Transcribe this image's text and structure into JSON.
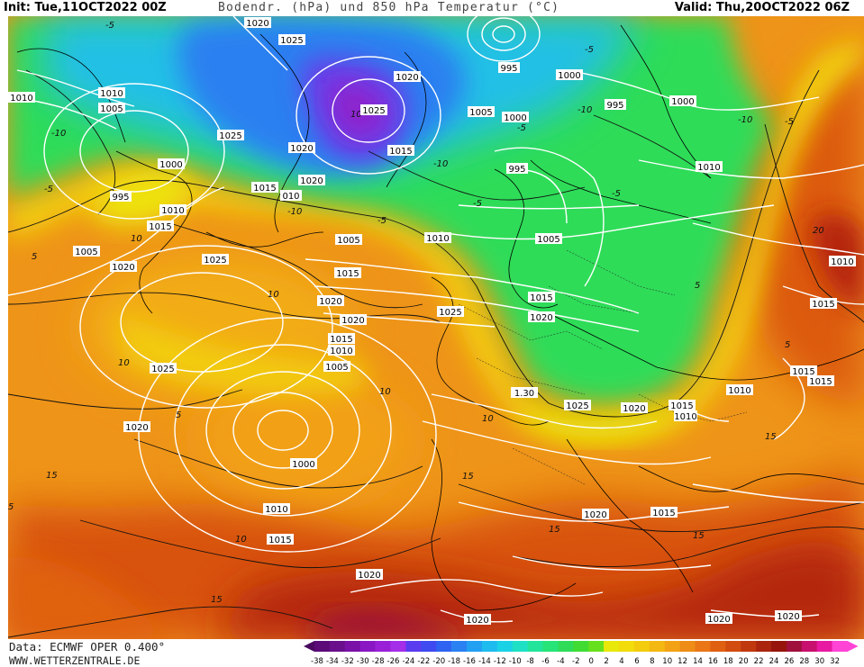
{
  "header": {
    "init": "Init: Tue,11OCT2022 00Z",
    "title": "Bodendr. (hPa) und 850 hPa Temperatur (°C)",
    "valid": "Valid: Thu,20OCT2022 06Z"
  },
  "footer": {
    "data_source": "Data: ECMWF OPER 0.400°",
    "website": "WWW.WETTERZENTRALE.DE"
  },
  "isobar_labels": [
    {
      "id": "isobar-label-1",
      "text": "1020"
    },
    {
      "id": "isobar-label-2",
      "text": "1025"
    },
    {
      "id": "isobar-label-3",
      "text": "1010"
    },
    {
      "id": "isobar-label-4",
      "text": "1010"
    },
    {
      "id": "isobar-label-5",
      "text": "1005"
    },
    {
      "id": "isobar-label-6",
      "text": "1020"
    },
    {
      "id": "isobar-label-7",
      "text": "1025"
    },
    {
      "id": "isobar-label-8",
      "text": "1025"
    },
    {
      "id": "isobar-label-9",
      "text": "1020"
    },
    {
      "id": "isobar-label-10",
      "text": "1015"
    },
    {
      "id": "isobar-label-11",
      "text": "995"
    },
    {
      "id": "isobar-label-12",
      "text": "1000"
    },
    {
      "id": "isobar-label-13",
      "text": "1005"
    },
    {
      "id": "isobar-label-14",
      "text": "1000"
    },
    {
      "id": "isobar-label-15",
      "text": "995"
    },
    {
      "id": "isobar-label-16",
      "text": "1000"
    },
    {
      "id": "isobar-label-17",
      "text": "1000"
    },
    {
      "id": "isobar-label-18",
      "text": "995"
    },
    {
      "id": "isobar-label-19",
      "text": "995"
    },
    {
      "id": "isobar-label-20",
      "text": "1010"
    },
    {
      "id": "isobar-label-21",
      "text": "1010"
    },
    {
      "id": "isobar-label-22",
      "text": "1015"
    },
    {
      "id": "isobar-label-23",
      "text": "1005"
    },
    {
      "id": "isobar-label-24",
      "text": "1020"
    },
    {
      "id": "isobar-label-25",
      "text": "1025"
    },
    {
      "id": "isobar-label-26",
      "text": "1015"
    },
    {
      "id": "isobar-label-27",
      "text": "1020"
    },
    {
      "id": "isobar-label-28",
      "text": "010"
    },
    {
      "id": "isobar-label-29",
      "text": "1005"
    },
    {
      "id": "isobar-label-30",
      "text": "1010"
    },
    {
      "id": "isobar-label-31",
      "text": "1005"
    },
    {
      "id": "isobar-label-32",
      "text": "1015"
    },
    {
      "id": "isobar-label-33",
      "text": "1020"
    },
    {
      "id": "isobar-label-34",
      "text": "1020"
    },
    {
      "id": "isobar-label-35",
      "text": "1015"
    },
    {
      "id": "isobar-label-36",
      "text": "1010"
    },
    {
      "id": "isobar-label-37",
      "text": "1005"
    },
    {
      "id": "isobar-label-38",
      "text": "1025"
    },
    {
      "id": "isobar-label-39",
      "text": "1015"
    },
    {
      "id": "isobar-label-40",
      "text": "1020"
    },
    {
      "id": "isobar-label-41",
      "text": "1025"
    },
    {
      "id": "isobar-label-42",
      "text": "1.30"
    },
    {
      "id": "isobar-label-43",
      "text": "1025"
    },
    {
      "id": "isobar-label-44",
      "text": "1020"
    },
    {
      "id": "isobar-label-45",
      "text": "1015"
    },
    {
      "id": "isobar-label-46",
      "text": "1010"
    },
    {
      "id": "isobar-label-47",
      "text": "1010"
    },
    {
      "id": "isobar-label-48",
      "text": "1015"
    },
    {
      "id": "isobar-label-49",
      "text": "1015"
    },
    {
      "id": "isobar-label-50",
      "text": "1020"
    },
    {
      "id": "isobar-label-51",
      "text": "1000"
    },
    {
      "id": "isobar-label-52",
      "text": "1010"
    },
    {
      "id": "isobar-label-53",
      "text": "1015"
    },
    {
      "id": "isobar-label-54",
      "text": "1020"
    },
    {
      "id": "isobar-label-55",
      "text": "1015"
    },
    {
      "id": "isobar-label-56",
      "text": "1020"
    },
    {
      "id": "isobar-label-57",
      "text": "1020"
    },
    {
      "id": "isobar-label-58",
      "text": "1020"
    },
    {
      "id": "isobar-label-59",
      "text": "1020"
    },
    {
      "id": "isobar-label-60",
      "text": "1010"
    },
    {
      "id": "isobar-label-61",
      "text": "1015"
    }
  ],
  "isotherm_labels": [
    {
      "id": "iso-t-1",
      "text": "-5"
    },
    {
      "id": "iso-t-2",
      "text": "-10"
    },
    {
      "id": "iso-t-3",
      "text": "-5"
    },
    {
      "id": "iso-t-4",
      "text": "-10"
    },
    {
      "id": "iso-t-5",
      "text": "-5"
    },
    {
      "id": "iso-t-6",
      "text": "-10"
    },
    {
      "id": "iso-t-7",
      "text": "-5"
    },
    {
      "id": "iso-t-8",
      "text": "-5"
    },
    {
      "id": "iso-t-9",
      "text": "-5"
    },
    {
      "id": "iso-t-10",
      "text": "-10"
    },
    {
      "id": "iso-t-11",
      "text": "-10"
    },
    {
      "id": "iso-t-12",
      "text": "-5"
    },
    {
      "id": "iso-t-13",
      "text": "5"
    },
    {
      "id": "iso-t-14",
      "text": "10"
    },
    {
      "id": "iso-t-15",
      "text": "10"
    },
    {
      "id": "iso-t-16",
      "text": "10"
    },
    {
      "id": "iso-t-17",
      "text": "5"
    },
    {
      "id": "iso-t-18",
      "text": "10"
    },
    {
      "id": "iso-t-19",
      "text": "15"
    },
    {
      "id": "iso-t-20",
      "text": "15"
    },
    {
      "id": "iso-t-21",
      "text": "15"
    },
    {
      "id": "iso-t-22",
      "text": "10"
    },
    {
      "id": "iso-t-23",
      "text": "15"
    },
    {
      "id": "iso-t-24",
      "text": "20"
    },
    {
      "id": "iso-t-25",
      "text": "5"
    },
    {
      "id": "iso-t-26",
      "text": "5"
    },
    {
      "id": "iso-t-27",
      "text": "-5"
    },
    {
      "id": "iso-t-28",
      "text": "10"
    },
    {
      "id": "iso-t-29",
      "text": "10"
    },
    {
      "id": "iso-t-30",
      "text": "5"
    },
    {
      "id": "iso-t-31",
      "text": "15"
    },
    {
      "id": "iso-t-32",
      "text": "15"
    },
    {
      "id": "iso-t-33",
      "text": "5"
    }
  ],
  "color_scale": {
    "labels": [
      "-38",
      "-34",
      "-32",
      "-30",
      "-28",
      "-26",
      "-24",
      "-22",
      "-20",
      "-18",
      "-16",
      "-14",
      "-12",
      "-10",
      "-8",
      "-6",
      "-4",
      "-2",
      "0",
      "2",
      "4",
      "6",
      "8",
      "10",
      "12",
      "14",
      "16",
      "18",
      "20",
      "22",
      "24",
      "26",
      "28",
      "30",
      "32"
    ],
    "colors": [
      "#5c0a78",
      "#6a0f8c",
      "#7a12a8",
      "#8a16c4",
      "#9a20d8",
      "#a52ee8",
      "#5a3cf0",
      "#3f4af0",
      "#2f64f2",
      "#2a82f2",
      "#22a0f2",
      "#1ebcee",
      "#1ad2e6",
      "#1ee0c4",
      "#22e49a",
      "#26e478",
      "#2edc58",
      "#40dc34",
      "#66e01c",
      "#e8e80a",
      "#f2dc0c",
      "#f4cc0e",
      "#f4b812",
      "#f2a214",
      "#ee8c16",
      "#ea7616",
      "#e06012",
      "#d24c10",
      "#c0380e",
      "#aa240e",
      "#96140c",
      "#a0103c",
      "#c8106e",
      "#e81aa2",
      "#ff44d6"
    ]
  }
}
